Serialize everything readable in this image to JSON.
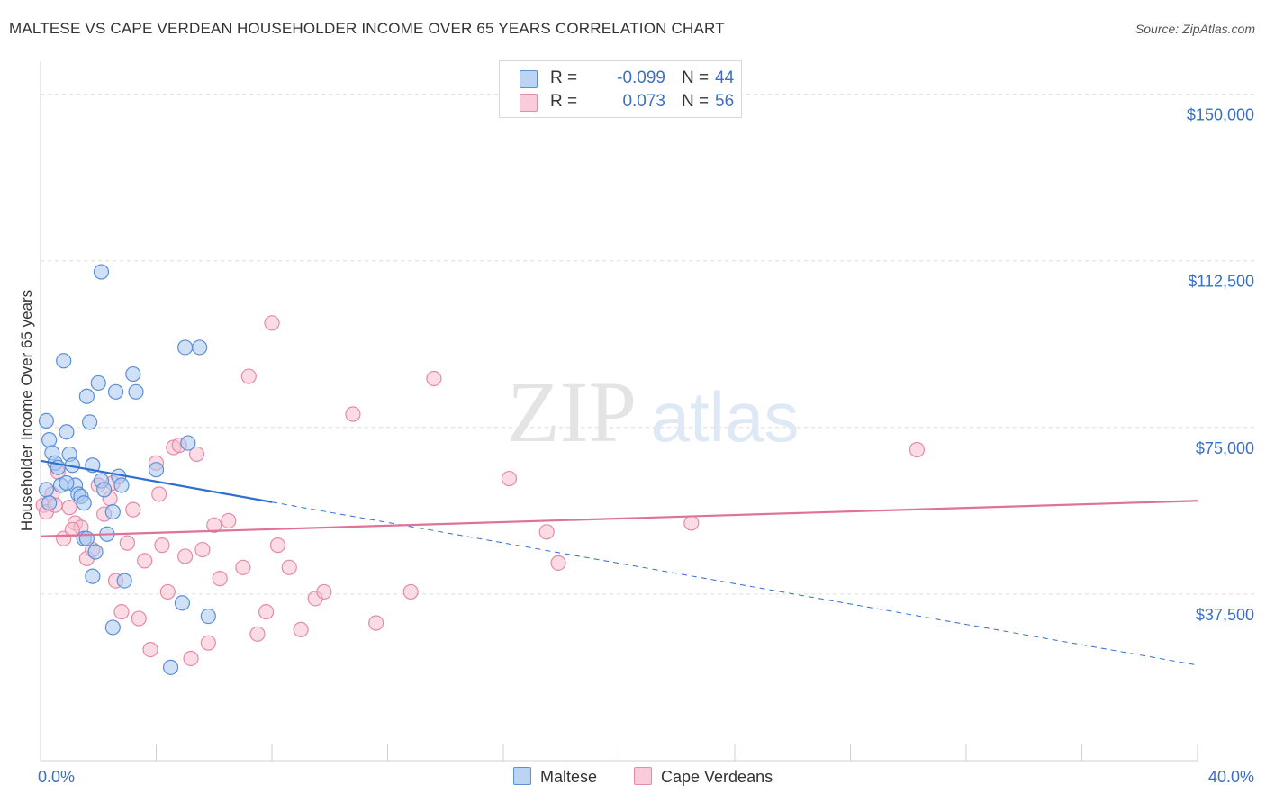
{
  "title": "MALTESE VS CAPE VERDEAN HOUSEHOLDER INCOME OVER 65 YEARS CORRELATION CHART",
  "source": "Source: ZipAtlas.com",
  "watermark": {
    "zip": "ZIP",
    "atlas": "atlas"
  },
  "colors": {
    "maltese_fill": "#a9c8f0",
    "maltese_stroke": "#5b8fd6",
    "maltese_line": "#2f6fd0",
    "cape_fill": "#f7bfd0",
    "cape_stroke": "#e58aa8",
    "cape_line": "#e0729a",
    "axis_label": "#3a6fc4",
    "grid": "#dcdcdc"
  },
  "legend_top": {
    "rows": [
      {
        "series": "Maltese",
        "r_label": "R =",
        "r_value": "-0.099",
        "n_label": "N =",
        "n_value": "44"
      },
      {
        "series": "Cape Verdeans",
        "r_label": "R =",
        "r_value": "0.073",
        "n_label": "N =",
        "n_value": "56"
      }
    ]
  },
  "legend_bottom": [
    "Maltese",
    "Cape Verdeans"
  ],
  "chart_data": {
    "type": "scatter",
    "title": "MALTESE VS CAPE VERDEAN HOUSEHOLDER INCOME OVER 65 YEARS CORRELATION CHART",
    "xlabel": "",
    "ylabel": "Householder Income Over 65 years",
    "xlim": [
      0,
      40
    ],
    "ylim": [
      0,
      156000
    ],
    "x_tick_labels": [
      {
        "value": 0,
        "label": "0.0%"
      },
      {
        "value": 40,
        "label": "40.0%"
      }
    ],
    "x_minor_ticks": [
      0,
      4,
      8,
      12,
      16,
      20,
      24,
      28,
      32,
      36,
      40
    ],
    "y_ticks": [
      {
        "value": 37500,
        "label": "$37,500"
      },
      {
        "value": 75000,
        "label": "$75,000"
      },
      {
        "value": 112500,
        "label": "$112,500"
      },
      {
        "value": 150000,
        "label": "$150,000"
      }
    ],
    "grid": true,
    "legend": "top-center and bottom-center",
    "series": [
      {
        "name": "Maltese",
        "trend": {
          "x": [
            0,
            8,
            40
          ],
          "y": [
            67500,
            58200,
            21500
          ],
          "solid_until": 8
        },
        "points": [
          [
            0.2,
            76500
          ],
          [
            0.3,
            72200
          ],
          [
            0.4,
            69300
          ],
          [
            0.5,
            67000
          ],
          [
            0.6,
            66000
          ],
          [
            0.7,
            62000
          ],
          [
            0.2,
            61000
          ],
          [
            0.3,
            58000
          ],
          [
            0.8,
            90000
          ],
          [
            0.9,
            74000
          ],
          [
            1.0,
            69000
          ],
          [
            1.1,
            66500
          ],
          [
            1.2,
            62000
          ],
          [
            1.3,
            60000
          ],
          [
            1.4,
            59500
          ],
          [
            1.5,
            58000
          ],
          [
            1.6,
            82000
          ],
          [
            1.7,
            76200
          ],
          [
            1.8,
            66500
          ],
          [
            2.0,
            85000
          ],
          [
            2.1,
            63000
          ],
          [
            2.2,
            61000
          ],
          [
            2.3,
            51000
          ],
          [
            2.5,
            56000
          ],
          [
            2.6,
            83000
          ],
          [
            2.7,
            64000
          ],
          [
            2.8,
            62000
          ],
          [
            2.9,
            40500
          ],
          [
            3.2,
            87000
          ],
          [
            3.3,
            83000
          ],
          [
            2.1,
            110000
          ],
          [
            1.9,
            47000
          ],
          [
            1.5,
            50000
          ],
          [
            1.8,
            41500
          ],
          [
            2.5,
            30000
          ],
          [
            5.0,
            93000
          ],
          [
            5.5,
            93000
          ],
          [
            5.1,
            71500
          ],
          [
            4.0,
            65500
          ],
          [
            4.9,
            35500
          ],
          [
            5.8,
            32500
          ],
          [
            4.5,
            21000
          ],
          [
            0.9,
            62500
          ],
          [
            1.6,
            50000
          ]
        ]
      },
      {
        "name": "Cape Verdeans",
        "trend": {
          "x": [
            0,
            40
          ],
          "y": [
            50500,
            58500
          ]
        },
        "points": [
          [
            0.1,
            57500
          ],
          [
            0.2,
            56000
          ],
          [
            0.4,
            60000
          ],
          [
            0.6,
            65000
          ],
          [
            0.8,
            50000
          ],
          [
            1.0,
            57000
          ],
          [
            1.2,
            53500
          ],
          [
            1.4,
            52500
          ],
          [
            1.6,
            45500
          ],
          [
            1.8,
            47500
          ],
          [
            2.0,
            62000
          ],
          [
            2.2,
            55500
          ],
          [
            2.4,
            59000
          ],
          [
            2.6,
            40500
          ],
          [
            2.8,
            33500
          ],
          [
            3.0,
            49000
          ],
          [
            3.2,
            56500
          ],
          [
            3.4,
            32000
          ],
          [
            3.6,
            45000
          ],
          [
            3.8,
            25000
          ],
          [
            4.0,
            67000
          ],
          [
            4.2,
            48500
          ],
          [
            4.4,
            38000
          ],
          [
            4.6,
            70500
          ],
          [
            4.8,
            71000
          ],
          [
            5.0,
            46000
          ],
          [
            5.2,
            23000
          ],
          [
            5.4,
            69000
          ],
          [
            5.6,
            47500
          ],
          [
            5.8,
            26500
          ],
          [
            6.0,
            53000
          ],
          [
            6.2,
            41000
          ],
          [
            6.5,
            54000
          ],
          [
            7.0,
            43500
          ],
          [
            7.2,
            86500
          ],
          [
            7.5,
            28500
          ],
          [
            7.8,
            33500
          ],
          [
            8.0,
            98500
          ],
          [
            8.2,
            48500
          ],
          [
            8.6,
            43500
          ],
          [
            9.0,
            29500
          ],
          [
            9.5,
            36500
          ],
          [
            9.8,
            38000
          ],
          [
            10.8,
            78000
          ],
          [
            11.6,
            31000
          ],
          [
            12.8,
            38000
          ],
          [
            13.6,
            86000
          ],
          [
            16.2,
            63500
          ],
          [
            17.5,
            51500
          ],
          [
            17.9,
            44500
          ],
          [
            22.5,
            53500
          ],
          [
            30.3,
            70000
          ],
          [
            0.5,
            57500
          ],
          [
            2.5,
            62500
          ],
          [
            1.1,
            52000
          ],
          [
            4.1,
            60000
          ]
        ]
      }
    ]
  }
}
